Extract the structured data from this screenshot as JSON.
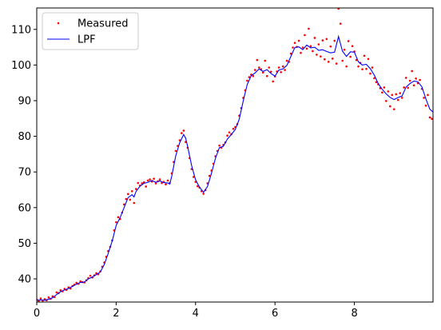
{
  "chart_data": {
    "type": "line",
    "xlim": [
      0,
      9.98
    ],
    "ylim": [
      33.5,
      116
    ],
    "x_ticks": [
      0,
      2,
      4,
      6,
      8
    ],
    "y_ticks": [
      40,
      50,
      60,
      70,
      80,
      90,
      100,
      110
    ],
    "grid": false,
    "legend": {
      "position": "top-left"
    },
    "series": [
      {
        "name": "Measured",
        "kind": "scatter",
        "color": "#ff0000",
        "points": [
          [
            0.0,
            34.2
          ],
          [
            0.05,
            33.8
          ],
          [
            0.1,
            34.5
          ],
          [
            0.15,
            33.9
          ],
          [
            0.2,
            34.3
          ],
          [
            0.25,
            34.0
          ],
          [
            0.3,
            34.8
          ],
          [
            0.35,
            34.4
          ],
          [
            0.4,
            35.1
          ],
          [
            0.45,
            34.9
          ],
          [
            0.5,
            36.2
          ],
          [
            0.55,
            36.0
          ],
          [
            0.6,
            36.8
          ],
          [
            0.65,
            36.5
          ],
          [
            0.7,
            37.2
          ],
          [
            0.75,
            36.9
          ],
          [
            0.8,
            37.6
          ],
          [
            0.85,
            37.3
          ],
          [
            0.9,
            38.0
          ],
          [
            0.95,
            38.4
          ],
          [
            1.0,
            38.9
          ],
          [
            1.05,
            38.6
          ],
          [
            1.1,
            39.3
          ],
          [
            1.15,
            39.1
          ],
          [
            1.2,
            39.0
          ],
          [
            1.25,
            39.6
          ],
          [
            1.3,
            40.2
          ],
          [
            1.35,
            40.9
          ],
          [
            1.4,
            40.4
          ],
          [
            1.45,
            41.0
          ],
          [
            1.5,
            41.6
          ],
          [
            1.55,
            41.3
          ],
          [
            1.6,
            42.1
          ],
          [
            1.65,
            43.4
          ],
          [
            1.7,
            44.6
          ],
          [
            1.75,
            46.2
          ],
          [
            1.8,
            47.8
          ],
          [
            1.85,
            49.0
          ],
          [
            1.9,
            50.8
          ],
          [
            1.95,
            53.6
          ],
          [
            2.0,
            55.9
          ],
          [
            2.05,
            57.3
          ],
          [
            2.1,
            56.8
          ],
          [
            2.15,
            58.6
          ],
          [
            2.2,
            60.9
          ],
          [
            2.25,
            62.4
          ],
          [
            2.3,
            63.8
          ],
          [
            2.35,
            62.2
          ],
          [
            2.4,
            64.6
          ],
          [
            2.45,
            61.3
          ],
          [
            2.5,
            65.2
          ],
          [
            2.55,
            66.9
          ],
          [
            2.6,
            66.2
          ],
          [
            2.65,
            66.8
          ],
          [
            2.7,
            67.1
          ],
          [
            2.75,
            65.9
          ],
          [
            2.8,
            67.6
          ],
          [
            2.85,
            67.9
          ],
          [
            2.9,
            67.3
          ],
          [
            2.95,
            68.1
          ],
          [
            3.0,
            66.8
          ],
          [
            3.05,
            67.4
          ],
          [
            3.1,
            67.9
          ],
          [
            3.15,
            66.9
          ],
          [
            3.2,
            67.2
          ],
          [
            3.25,
            66.5
          ],
          [
            3.3,
            67.6
          ],
          [
            3.35,
            66.9
          ],
          [
            3.4,
            69.6
          ],
          [
            3.45,
            72.8
          ],
          [
            3.5,
            75.9
          ],
          [
            3.55,
            77.3
          ],
          [
            3.6,
            78.9
          ],
          [
            3.65,
            80.9
          ],
          [
            3.7,
            81.6
          ],
          [
            3.75,
            78.4
          ],
          [
            3.8,
            76.8
          ],
          [
            3.85,
            73.9
          ],
          [
            3.9,
            70.8
          ],
          [
            3.95,
            68.6
          ],
          [
            4.0,
            67.2
          ],
          [
            4.05,
            66.0
          ],
          [
            4.1,
            65.6
          ],
          [
            4.15,
            64.6
          ],
          [
            4.2,
            63.9
          ],
          [
            4.25,
            64.9
          ],
          [
            4.3,
            66.8
          ],
          [
            4.35,
            68.9
          ],
          [
            4.4,
            70.4
          ],
          [
            4.45,
            72.3
          ],
          [
            4.5,
            74.4
          ],
          [
            4.55,
            75.9
          ],
          [
            4.6,
            77.4
          ],
          [
            4.65,
            76.8
          ],
          [
            4.7,
            77.6
          ],
          [
            4.75,
            78.3
          ],
          [
            4.8,
            80.2
          ],
          [
            4.85,
            81.1
          ],
          [
            4.9,
            80.6
          ],
          [
            4.95,
            82.1
          ],
          [
            5.0,
            82.6
          ],
          [
            5.05,
            83.4
          ],
          [
            5.1,
            85.8
          ],
          [
            5.15,
            87.9
          ],
          [
            5.2,
            90.8
          ],
          [
            5.25,
            92.9
          ],
          [
            5.3,
            95.6
          ],
          [
            5.35,
            96.6
          ],
          [
            5.4,
            97.3
          ],
          [
            5.45,
            96.9
          ],
          [
            5.5,
            98.6
          ],
          [
            5.55,
            101.4
          ],
          [
            5.6,
            99.3
          ],
          [
            5.65,
            98.8
          ],
          [
            5.7,
            97.9
          ],
          [
            5.75,
            101.2
          ],
          [
            5.8,
            96.9
          ],
          [
            5.85,
            99.3
          ],
          [
            5.9,
            98.1
          ],
          [
            5.95,
            95.4
          ],
          [
            6.0,
            96.8
          ],
          [
            6.05,
            98.2
          ],
          [
            6.1,
            99.3
          ],
          [
            6.15,
            98.0
          ],
          [
            6.2,
            99.6
          ],
          [
            6.25,
            98.6
          ],
          [
            6.3,
            101.2
          ],
          [
            6.35,
            100.9
          ],
          [
            6.4,
            103.2
          ],
          [
            6.45,
            104.9
          ],
          [
            6.5,
            106.2
          ],
          [
            6.55,
            105.1
          ],
          [
            6.6,
            106.8
          ],
          [
            6.65,
            103.4
          ],
          [
            6.7,
            104.9
          ],
          [
            6.75,
            108.4
          ],
          [
            6.8,
            104.6
          ],
          [
            6.85,
            110.2
          ],
          [
            6.9,
            105.3
          ],
          [
            6.95,
            103.9
          ],
          [
            7.0,
            107.6
          ],
          [
            7.05,
            102.9
          ],
          [
            7.1,
            105.8
          ],
          [
            7.15,
            102.4
          ],
          [
            7.2,
            106.9
          ],
          [
            7.25,
            101.6
          ],
          [
            7.3,
            107.3
          ],
          [
            7.35,
            100.9
          ],
          [
            7.4,
            105.2
          ],
          [
            7.45,
            101.8
          ],
          [
            7.5,
            106.8
          ],
          [
            7.55,
            100.4
          ],
          [
            7.6,
            115.8
          ],
          [
            7.65,
            111.6
          ],
          [
            7.7,
            101.2
          ],
          [
            7.75,
            104.3
          ],
          [
            7.8,
            99.6
          ],
          [
            7.85,
            106.7
          ],
          [
            7.9,
            102.3
          ],
          [
            7.95,
            105.3
          ],
          [
            8.0,
            103.8
          ],
          [
            8.05,
            101.4
          ],
          [
            8.1,
            99.6
          ],
          [
            8.15,
            100.6
          ],
          [
            8.2,
            98.8
          ],
          [
            8.25,
            102.6
          ],
          [
            8.3,
            98.9
          ],
          [
            8.35,
            101.7
          ],
          [
            8.4,
            97.6
          ],
          [
            8.45,
            99.3
          ],
          [
            8.5,
            96.3
          ],
          [
            8.55,
            95.2
          ],
          [
            8.6,
            94.6
          ],
          [
            8.65,
            93.5
          ],
          [
            8.7,
            92.3
          ],
          [
            8.75,
            93.7
          ],
          [
            8.8,
            89.9
          ],
          [
            8.85,
            92.6
          ],
          [
            8.9,
            88.4
          ],
          [
            8.95,
            91.6
          ],
          [
            9.0,
            87.6
          ],
          [
            9.05,
            91.8
          ],
          [
            9.1,
            90.2
          ],
          [
            9.15,
            92.1
          ],
          [
            9.2,
            90.8
          ],
          [
            9.25,
            93.7
          ],
          [
            9.3,
            96.4
          ],
          [
            9.35,
            93.6
          ],
          [
            9.4,
            95.6
          ],
          [
            9.45,
            98.3
          ],
          [
            9.5,
            94.3
          ],
          [
            9.55,
            96.2
          ],
          [
            9.6,
            94.9
          ],
          [
            9.65,
            95.8
          ],
          [
            9.7,
            93.3
          ],
          [
            9.75,
            90.8
          ],
          [
            9.8,
            88.6
          ],
          [
            9.85,
            91.6
          ],
          [
            9.9,
            85.3
          ],
          [
            9.95,
            84.9
          ]
        ]
      },
      {
        "name": "LPF",
        "kind": "line",
        "color": "#0000ff",
        "points": [
          [
            0.0,
            34.0
          ],
          [
            0.1,
            34.1
          ],
          [
            0.2,
            34.0
          ],
          [
            0.3,
            34.3
          ],
          [
            0.4,
            34.7
          ],
          [
            0.5,
            35.6
          ],
          [
            0.6,
            36.4
          ],
          [
            0.7,
            36.9
          ],
          [
            0.8,
            37.3
          ],
          [
            0.9,
            37.9
          ],
          [
            1.0,
            38.5
          ],
          [
            1.1,
            39.0
          ],
          [
            1.2,
            39.1
          ],
          [
            1.3,
            40.0
          ],
          [
            1.4,
            40.5
          ],
          [
            1.5,
            41.2
          ],
          [
            1.6,
            41.9
          ],
          [
            1.7,
            44.0
          ],
          [
            1.8,
            47.2
          ],
          [
            1.9,
            50.6
          ],
          [
            2.0,
            55.0
          ],
          [
            2.1,
            57.2
          ],
          [
            2.2,
            60.0
          ],
          [
            2.3,
            62.8
          ],
          [
            2.4,
            63.6
          ],
          [
            2.45,
            63.0
          ],
          [
            2.5,
            64.5
          ],
          [
            2.6,
            66.0
          ],
          [
            2.7,
            66.8
          ],
          [
            2.8,
            67.1
          ],
          [
            2.9,
            67.6
          ],
          [
            3.0,
            67.1
          ],
          [
            3.1,
            67.5
          ],
          [
            3.2,
            67.0
          ],
          [
            3.3,
            66.9
          ],
          [
            3.35,
            66.6
          ],
          [
            3.4,
            68.8
          ],
          [
            3.5,
            74.5
          ],
          [
            3.6,
            78.2
          ],
          [
            3.7,
            80.5
          ],
          [
            3.75,
            79.5
          ],
          [
            3.8,
            77.2
          ],
          [
            3.9,
            71.8
          ],
          [
            4.0,
            67.8
          ],
          [
            4.1,
            65.7
          ],
          [
            4.2,
            64.3
          ],
          [
            4.3,
            65.9
          ],
          [
            4.4,
            69.6
          ],
          [
            4.5,
            73.8
          ],
          [
            4.6,
            76.8
          ],
          [
            4.7,
            77.2
          ],
          [
            4.8,
            79.2
          ],
          [
            4.9,
            80.5
          ],
          [
            5.0,
            81.9
          ],
          [
            5.1,
            84.8
          ],
          [
            5.2,
            89.9
          ],
          [
            5.3,
            94.5
          ],
          [
            5.4,
            97.0
          ],
          [
            5.5,
            97.8
          ],
          [
            5.6,
            98.9
          ],
          [
            5.7,
            98.2
          ],
          [
            5.8,
            98.7
          ],
          [
            5.9,
            97.6
          ],
          [
            6.0,
            96.9
          ],
          [
            6.1,
            98.6
          ],
          [
            6.2,
            98.9
          ],
          [
            6.3,
            99.9
          ],
          [
            6.4,
            102.4
          ],
          [
            6.5,
            104.9
          ],
          [
            6.6,
            105.1
          ],
          [
            6.7,
            104.3
          ],
          [
            6.8,
            105.6
          ],
          [
            6.9,
            104.8
          ],
          [
            7.0,
            105.0
          ],
          [
            7.1,
            104.1
          ],
          [
            7.2,
            104.3
          ],
          [
            7.3,
            103.8
          ],
          [
            7.4,
            103.4
          ],
          [
            7.5,
            103.6
          ],
          [
            7.6,
            108.0
          ],
          [
            7.7,
            103.9
          ],
          [
            7.8,
            102.4
          ],
          [
            7.9,
            103.7
          ],
          [
            8.0,
            103.6
          ],
          [
            8.1,
            100.9
          ],
          [
            8.2,
            100.0
          ],
          [
            8.3,
            100.2
          ],
          [
            8.4,
            99.0
          ],
          [
            8.5,
            97.2
          ],
          [
            8.6,
            94.8
          ],
          [
            8.7,
            93.2
          ],
          [
            8.8,
            91.9
          ],
          [
            8.9,
            90.9
          ],
          [
            9.0,
            90.3
          ],
          [
            9.1,
            90.9
          ],
          [
            9.2,
            91.3
          ],
          [
            9.3,
            93.8
          ],
          [
            9.4,
            94.8
          ],
          [
            9.5,
            95.5
          ],
          [
            9.6,
            95.3
          ],
          [
            9.7,
            93.9
          ],
          [
            9.8,
            90.5
          ],
          [
            9.9,
            87.6
          ],
          [
            9.98,
            86.8
          ]
        ]
      }
    ]
  }
}
